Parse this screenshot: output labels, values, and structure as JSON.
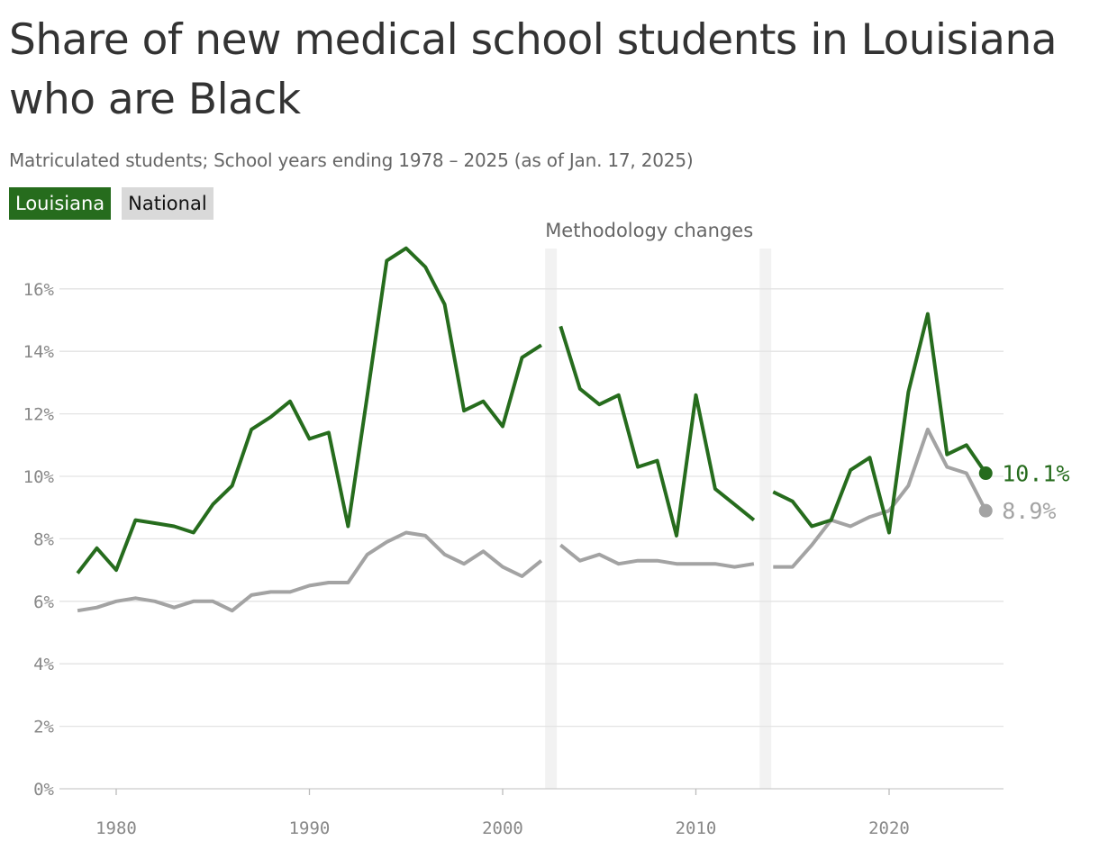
{
  "chart_data": {
    "type": "line",
    "title": "Share of new medical school students in Louisiana who are Black",
    "subtitle": "Matriculated students; School years ending 1978 – 2025 (as of Jan. 17, 2025)",
    "annotation": "Methodology changes",
    "methodology_bands": [
      [
        2002.2,
        2002.8
      ],
      [
        2013.3,
        2013.9
      ]
    ],
    "xlim": [
      1977,
      2026
    ],
    "ylim": [
      0,
      16
    ],
    "x_ticks": [
      1980,
      1990,
      2000,
      2010,
      2020
    ],
    "x_tick_labels": [
      "1980",
      "1990",
      "2000",
      "2010",
      "2020"
    ],
    "y_ticks": [
      0,
      2,
      4,
      6,
      8,
      10,
      12,
      14,
      16
    ],
    "y_tick_labels": [
      "0%",
      "2%",
      "4%",
      "6%",
      "8%",
      "10%",
      "12%",
      "14%",
      "16%"
    ],
    "grid": true,
    "legend_position": "top-left",
    "series": [
      {
        "name": "Louisiana",
        "color": "#266c1d",
        "end_label": "10.1%",
        "segments": [
          {
            "x": [
              1978,
              1979,
              1980,
              1981,
              1982,
              1983,
              1984,
              1985,
              1986,
              1987,
              1988,
              1989,
              1990,
              1991,
              1992,
              1993,
              1994,
              1995,
              1996,
              1997,
              1998,
              1999,
              2000,
              2001,
              2002
            ],
            "y": [
              6.9,
              7.7,
              7.0,
              8.6,
              8.5,
              8.4,
              8.2,
              9.1,
              9.7,
              11.5,
              11.9,
              12.4,
              11.2,
              11.4,
              8.4,
              12.6,
              16.9,
              17.3,
              16.7,
              15.5,
              12.1,
              12.4,
              11.6,
              13.8,
              14.2
            ]
          },
          {
            "x": [
              2003,
              2004,
              2005,
              2006,
              2007,
              2008,
              2009,
              2010,
              2011,
              2012,
              2013
            ],
            "y": [
              14.8,
              12.8,
              12.3,
              12.6,
              10.3,
              10.5,
              8.1,
              12.6,
              9.6,
              9.1,
              8.6
            ]
          },
          {
            "x": [
              2014,
              2015,
              2016,
              2017,
              2018,
              2019,
              2020,
              2021,
              2022,
              2023,
              2024,
              2025
            ],
            "y": [
              9.5,
              9.2,
              8.4,
              8.6,
              10.2,
              10.6,
              8.2,
              12.7,
              15.2,
              10.7,
              11.0,
              10.1
            ]
          }
        ]
      },
      {
        "name": "National",
        "color": "#a3a3a3",
        "end_label": "8.9%",
        "segments": [
          {
            "x": [
              1978,
              1979,
              1980,
              1981,
              1982,
              1983,
              1984,
              1985,
              1986,
              1987,
              1988,
              1989,
              1990,
              1991,
              1992,
              1993,
              1994,
              1995,
              1996,
              1997,
              1998,
              1999,
              2000,
              2001,
              2002
            ],
            "y": [
              5.7,
              5.8,
              6.0,
              6.1,
              6.0,
              5.8,
              6.0,
              6.0,
              5.7,
              6.2,
              6.3,
              6.3,
              6.5,
              6.6,
              6.6,
              7.5,
              7.9,
              8.2,
              8.1,
              7.5,
              7.2,
              7.6,
              7.1,
              6.8,
              7.3
            ]
          },
          {
            "x": [
              2003,
              2004,
              2005,
              2006,
              2007,
              2008,
              2009,
              2010,
              2011,
              2012,
              2013
            ],
            "y": [
              7.8,
              7.3,
              7.5,
              7.2,
              7.3,
              7.3,
              7.2,
              7.2,
              7.2,
              7.1,
              7.2
            ]
          },
          {
            "x": [
              2014,
              2015,
              2016,
              2017,
              2018,
              2019,
              2020,
              2021,
              2022,
              2023,
              2024,
              2025
            ],
            "y": [
              7.1,
              7.1,
              7.8,
              8.6,
              8.4,
              8.7,
              8.9,
              9.7,
              11.5,
              10.3,
              10.1,
              8.9
            ]
          }
        ]
      }
    ],
    "legend": [
      {
        "name": "Louisiana",
        "bg": "#266c1d",
        "fg": "#ffffff"
      },
      {
        "name": "National",
        "bg": "#d9d9d9",
        "fg": "#111111"
      }
    ]
  }
}
